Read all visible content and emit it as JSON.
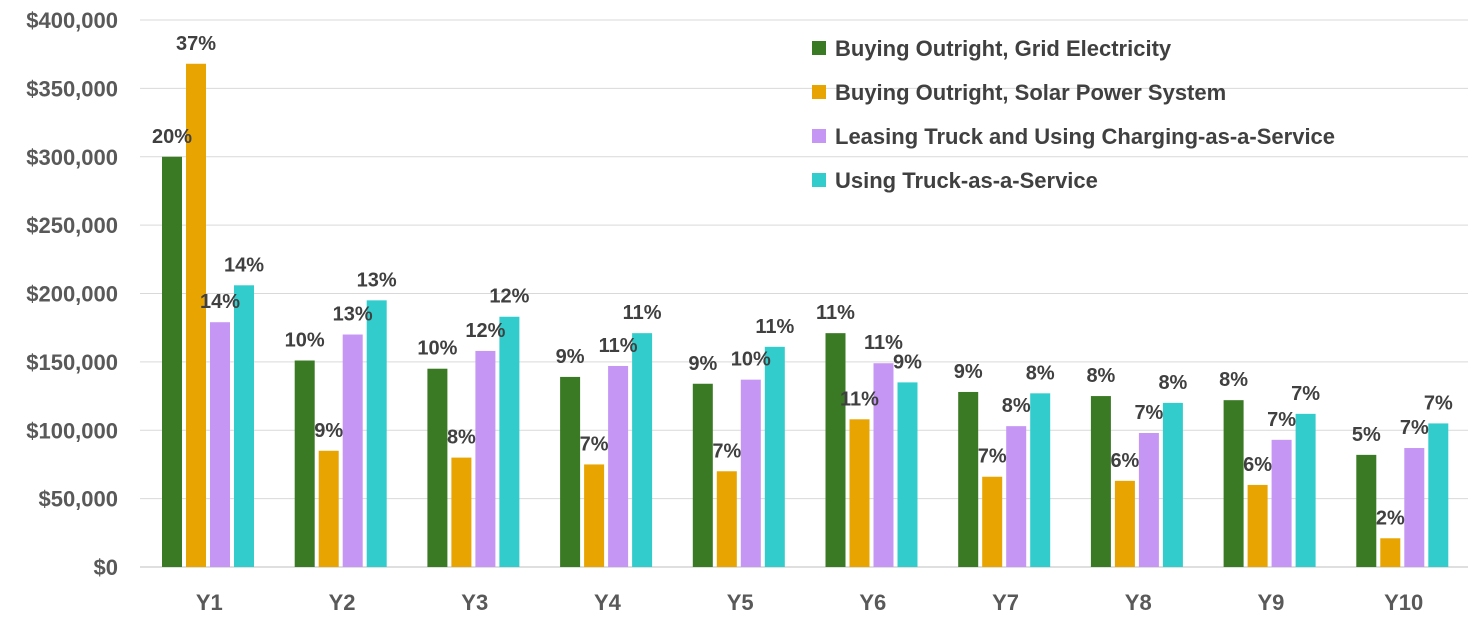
{
  "chart_data": {
    "type": "bar",
    "title": "",
    "xlabel": "",
    "ylabel": "",
    "ylim": [
      0,
      400000
    ],
    "y_ticks": [
      "$0",
      "$50,000",
      "$100,000",
      "$150,000",
      "$200,000",
      "$250,000",
      "$300,000",
      "$350,000",
      "$400,000"
    ],
    "y_tick_values": [
      0,
      50000,
      100000,
      150000,
      200000,
      250000,
      300000,
      350000,
      400000
    ],
    "grid": true,
    "legend_position": "top-right",
    "categories": [
      "Y1",
      "Y2",
      "Y3",
      "Y4",
      "Y5",
      "Y6",
      "Y7",
      "Y8",
      "Y9",
      "Y10"
    ],
    "series": [
      {
        "name": "Buying Outright, Grid Electricity",
        "color": "#3B7A24",
        "values": [
          300000,
          151000,
          145000,
          139000,
          134000,
          171000,
          128000,
          125000,
          122000,
          82000
        ],
        "labels": [
          "20%",
          "10%",
          "10%",
          "9%",
          "9%",
          "11%",
          "9%",
          "8%",
          "8%",
          "5%"
        ]
      },
      {
        "name": "Buying Outright, Solar Power System",
        "color": "#E8A400",
        "values": [
          368000,
          85000,
          80000,
          75000,
          70000,
          108000,
          66000,
          63000,
          60000,
          21000
        ],
        "labels": [
          "37%",
          "9%",
          "8%",
          "7%",
          "7%",
          "11%",
          "7%",
          "6%",
          "6%",
          "2%"
        ]
      },
      {
        "name": "Leasing Truck and Using Charging-as-a-Service",
        "color": "#C696F5",
        "values": [
          179000,
          170000,
          158000,
          147000,
          137000,
          149000,
          103000,
          98000,
          93000,
          87000
        ],
        "labels": [
          "14%",
          "13%",
          "12%",
          "11%",
          "10%",
          "11%",
          "8%",
          "7%",
          "7%",
          "7%"
        ]
      },
      {
        "name": "Using Truck-as-a-Service",
        "color": "#33CCCC",
        "values": [
          206000,
          195000,
          183000,
          171000,
          161000,
          135000,
          127000,
          120000,
          112000,
          105000
        ],
        "labels": [
          "14%",
          "13%",
          "12%",
          "11%",
          "11%",
          "9%",
          "8%",
          "8%",
          "7%",
          "7%"
        ]
      }
    ]
  }
}
